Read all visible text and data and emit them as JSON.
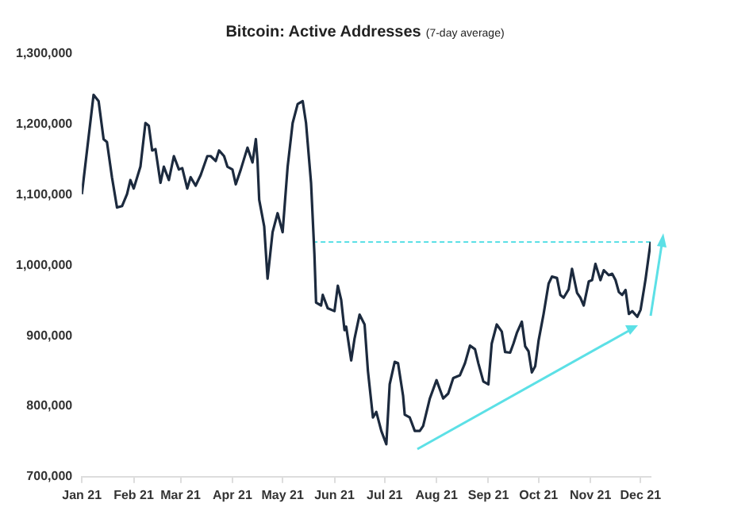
{
  "chart_data": {
    "type": "line",
    "title": "Bitcoin: Active Addresses",
    "subtitle": "(7-day average)",
    "x": [
      "2021-01-01",
      "2021-01-08",
      "2021-01-11",
      "2021-01-14",
      "2021-01-16",
      "2021-01-19",
      "2021-01-22",
      "2021-01-25",
      "2021-01-28",
      "2021-01-30",
      "2021-02-01",
      "2021-02-05",
      "2021-02-08",
      "2021-02-10",
      "2021-02-12",
      "2021-02-14",
      "2021-02-17",
      "2021-02-19",
      "2021-02-22",
      "2021-02-25",
      "2021-02-28",
      "2021-03-02",
      "2021-03-05",
      "2021-03-07",
      "2021-03-10",
      "2021-03-13",
      "2021-03-17",
      "2021-03-19",
      "2021-03-22",
      "2021-03-24",
      "2021-03-27",
      "2021-03-29",
      "2021-04-01",
      "2021-04-03",
      "2021-04-06",
      "2021-04-10",
      "2021-04-13",
      "2021-04-15",
      "2021-04-16",
      "2021-04-17",
      "2021-04-20",
      "2021-04-22",
      "2021-04-25",
      "2021-04-28",
      "2021-05-01",
      "2021-05-04",
      "2021-05-07",
      "2021-05-10",
      "2021-05-13",
      "2021-05-15",
      "2021-05-18",
      "2021-05-20",
      "2021-05-21",
      "2021-05-24",
      "2021-05-25",
      "2021-05-28",
      "2021-06-01",
      "2021-06-03",
      "2021-06-05",
      "2021-06-07",
      "2021-06-08",
      "2021-06-11",
      "2021-06-13",
      "2021-06-16",
      "2021-06-19",
      "2021-06-21",
      "2021-06-24",
      "2021-06-26",
      "2021-06-29",
      "2021-07-02",
      "2021-07-04",
      "2021-07-07",
      "2021-07-09",
      "2021-07-12",
      "2021-07-13",
      "2021-07-16",
      "2021-07-19",
      "2021-07-22",
      "2021-07-24",
      "2021-07-28",
      "2021-08-01",
      "2021-08-05",
      "2021-08-08",
      "2021-08-11",
      "2021-08-15",
      "2021-08-18",
      "2021-08-21",
      "2021-08-24",
      "2021-08-26",
      "2021-08-29",
      "2021-09-01",
      "2021-09-03",
      "2021-09-06",
      "2021-09-09",
      "2021-09-11",
      "2021-09-14",
      "2021-09-16",
      "2021-09-18",
      "2021-09-21",
      "2021-09-23",
      "2021-09-25",
      "2021-09-27",
      "2021-09-29",
      "2021-10-01",
      "2021-10-04",
      "2021-10-07",
      "2021-10-09",
      "2021-10-12",
      "2021-10-14",
      "2021-10-16",
      "2021-10-19",
      "2021-10-21",
      "2021-10-24",
      "2021-10-26",
      "2021-10-28",
      "2021-10-31",
      "2021-11-02",
      "2021-11-04",
      "2021-11-07",
      "2021-11-09",
      "2021-11-12",
      "2021-11-14",
      "2021-11-16",
      "2021-11-18",
      "2021-11-20",
      "2021-11-22",
      "2021-11-24",
      "2021-11-26",
      "2021-11-29",
      "2021-12-01",
      "2021-12-03",
      "2021-12-04",
      "2021-12-06",
      "2021-12-07"
    ],
    "series": [
      {
        "color": "#1c2a3e",
        "values": [
          1101000,
          1242000,
          1233000,
          1179000,
          1175000,
          1125000,
          1082000,
          1084000,
          1101000,
          1121000,
          1109000,
          1140000,
          1202000,
          1198000,
          1163000,
          1165000,
          1117000,
          1140000,
          1121000,
          1155000,
          1136000,
          1138000,
          1109000,
          1125000,
          1113000,
          1128000,
          1155000,
          1155000,
          1148000,
          1163000,
          1155000,
          1140000,
          1136000,
          1115000,
          1136000,
          1167000,
          1146000,
          1179000,
          1148000,
          1093000,
          1055000,
          981000,
          1047000,
          1074000,
          1047000,
          1140000,
          1202000,
          1229000,
          1233000,
          1202000,
          1117000,
          1016000,
          947000,
          943000,
          958000,
          939000,
          935000,
          971000,
          951000,
          908000,
          913000,
          865000,
          896000,
          930000,
          916000,
          850000,
          784000,
          792000,
          765000,
          746000,
          831000,
          863000,
          861000,
          815000,
          788000,
          784000,
          765000,
          765000,
          772000,
          811000,
          837000,
          811000,
          818000,
          840000,
          844000,
          861000,
          886000,
          881000,
          861000,
          835000,
          831000,
          889000,
          916000,
          906000,
          877000,
          876000,
          889000,
          904000,
          920000,
          885000,
          878000,
          848000,
          857000,
          893000,
          931000,
          974000,
          984000,
          982000,
          958000,
          954000,
          966000,
          995000,
          961000,
          954000,
          943000,
          977000,
          979000,
          1002000,
          979000,
          993000,
          986000,
          988000,
          979000,
          962000,
          958000,
          965000,
          931000,
          935000,
          927000,
          937000,
          966000,
          981000,
          1016000,
          1033000
        ]
      },
      {
        "type": "line",
        "x": [
          "2021-05-19",
          "2021-12-07"
        ],
        "color": "#5ce0e6",
        "line_style": "dashed",
        "values": [
          1033000,
          1033000
        ]
      }
    ],
    "xlim": [
      "2021-01-01",
      "2021-12-07"
    ],
    "xticks": [
      {
        "value": "2021-01-01",
        "label": "Jan 21"
      },
      {
        "value": "2021-02-01",
        "label": "Feb 21"
      },
      {
        "value": "2021-03-01",
        "label": "Mar 21"
      },
      {
        "value": "2021-04-01",
        "label": "Apr 21"
      },
      {
        "value": "2021-05-01",
        "label": "May 21"
      },
      {
        "value": "2021-06-01",
        "label": "Jun 21"
      },
      {
        "value": "2021-07-01",
        "label": "Jul 21"
      },
      {
        "value": "2021-08-01",
        "label": "Aug 21"
      },
      {
        "value": "2021-09-01",
        "label": "Sep 21"
      },
      {
        "value": "2021-10-01",
        "label": "Oct 21"
      },
      {
        "value": "2021-11-01",
        "label": "Nov 21"
      },
      {
        "value": "2021-12-01",
        "label": "Dec 21"
      }
    ],
    "ylim": [
      700000,
      1300000
    ],
    "yticks": [
      {
        "value": 700000,
        "label": "700,000"
      },
      {
        "value": 800000,
        "label": "800,000"
      },
      {
        "value": 900000,
        "label": "900,000"
      },
      {
        "value": 1000000,
        "label": "1,000,000"
      },
      {
        "value": 1100000,
        "label": "1,100,000"
      },
      {
        "value": 1200000,
        "label": "1,200,000"
      },
      {
        "value": 1300000,
        "label": "1,300,000"
      }
    ],
    "grid": false,
    "legend": false,
    "marker": "none",
    "line_style": "solid"
  }
}
